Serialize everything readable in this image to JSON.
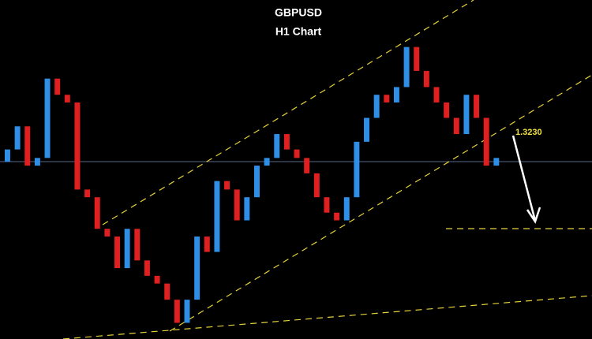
{
  "chart_data": {
    "type": "candlestick",
    "title": "GBPUSD",
    "subtitle": "H1 Chart",
    "annotation": "1.3230",
    "ylim": [
      1.296,
      1.34
    ],
    "up_color": "#2f8fe6",
    "down_color": "#e02020",
    "open": [
      1.319,
      1.3206,
      1.3236,
      1.3185,
      1.3195,
      1.3298,
      1.3277,
      1.3267,
      1.3154,
      1.3144,
      1.3103,
      1.3093,
      1.3052,
      1.3103,
      1.3062,
      1.3042,
      1.3032,
      1.3011,
      1.2981,
      1.3011,
      1.3093,
      1.3073,
      1.3165,
      1.3154,
      1.3114,
      1.3144,
      1.3185,
      1.3195,
      1.3226,
      1.3206,
      1.3195,
      1.3175,
      1.3144,
      1.3124,
      1.3114,
      1.3144,
      1.3216,
      1.3247,
      1.3277,
      1.3267,
      1.3287,
      1.3339,
      1.3308,
      1.3287,
      1.3267,
      1.3247,
      1.3226,
      1.3277,
      1.3247,
      1.3185
    ],
    "close": [
      1.3206,
      1.3236,
      1.3185,
      1.3195,
      1.3298,
      1.3277,
      1.3267,
      1.3154,
      1.3144,
      1.3103,
      1.3093,
      1.3052,
      1.3103,
      1.3062,
      1.3042,
      1.3032,
      1.3011,
      1.2981,
      1.3011,
      1.3093,
      1.3073,
      1.3165,
      1.3154,
      1.3114,
      1.3144,
      1.3185,
      1.3195,
      1.3226,
      1.3206,
      1.3195,
      1.3175,
      1.3144,
      1.3124,
      1.3114,
      1.3144,
      1.3216,
      1.3247,
      1.3277,
      1.3267,
      1.3287,
      1.3339,
      1.3308,
      1.3287,
      1.3267,
      1.3247,
      1.3226,
      1.3277,
      1.3247,
      1.3185,
      1.3195
    ]
  }
}
